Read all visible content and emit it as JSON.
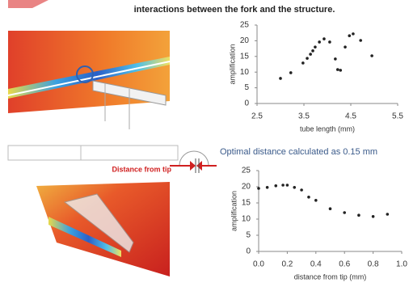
{
  "header": {
    "text": "interactions between the fork and the structure."
  },
  "annotation": {
    "label": "Distance from tip"
  },
  "chart_data": [
    {
      "type": "scatter",
      "x_label": "tube length (mm)",
      "y_label": "amplification",
      "x": [
        3.0,
        3.22,
        3.48,
        3.57,
        3.64,
        3.69,
        3.74,
        3.83,
        3.93,
        4.05,
        4.17,
        4.22,
        4.28,
        4.38,
        4.47,
        4.55,
        4.71,
        4.95
      ],
      "series": [
        {
          "color": "#222222",
          "values": [
            8.0,
            9.8,
            12.9,
            14.4,
            15.7,
            16.8,
            18.0,
            19.6,
            20.6,
            19.6,
            14.2,
            10.8,
            10.6,
            18.0,
            21.6,
            22.2,
            20.1,
            15.2
          ]
        }
      ],
      "xlim": [
        2.5,
        5.5
      ],
      "xticks": [
        2.5,
        3.5,
        4.5,
        5.5
      ],
      "ylim": [
        0,
        25
      ],
      "yticks": [
        0,
        5,
        10,
        15,
        20,
        25
      ]
    },
    {
      "type": "scatter",
      "title": "Optimal distance calculated as 0.15 mm",
      "x_label": "distance from tip (mm)",
      "y_label": "amplification",
      "x": [
        0.0,
        0.06,
        0.12,
        0.17,
        0.2,
        0.25,
        0.3,
        0.35,
        0.4,
        0.5,
        0.6,
        0.7,
        0.8,
        0.9
      ],
      "series": [
        {
          "color": "#222222",
          "values": [
            19.5,
            19.8,
            20.3,
            20.5,
            20.5,
            19.8,
            19.0,
            16.8,
            15.8,
            13.2,
            12.0,
            11.2,
            10.8,
            11.5
          ]
        }
      ],
      "xlim": [
        0,
        1
      ],
      "xticks": [
        {
          "value": 0,
          "label": "0.0"
        },
        0.2,
        0.4,
        0.6,
        0.8,
        {
          "value": 1,
          "label": "1.0"
        }
      ],
      "ylim": [
        0,
        25
      ],
      "yticks": [
        0,
        5,
        10,
        15,
        20,
        25
      ]
    }
  ]
}
